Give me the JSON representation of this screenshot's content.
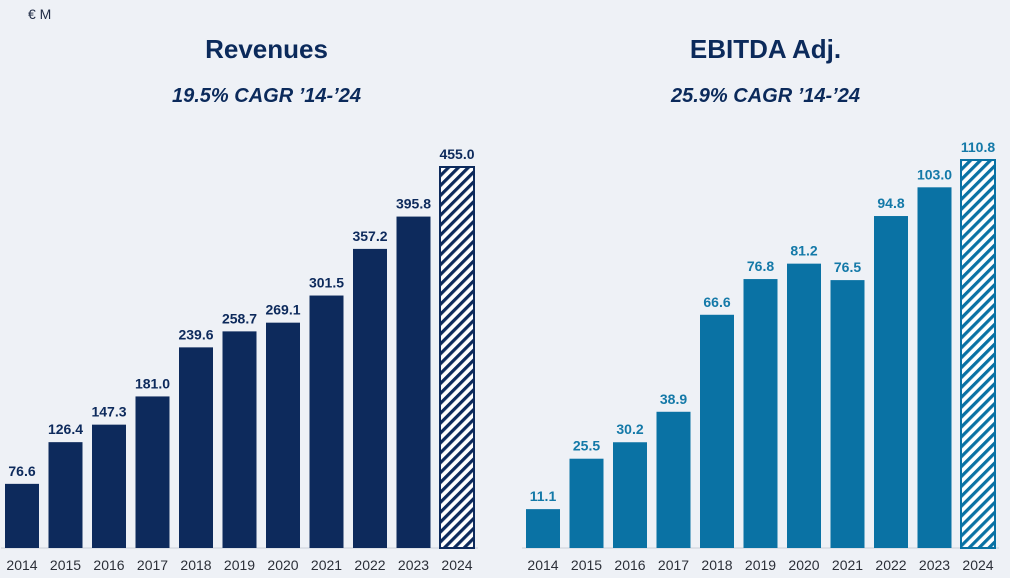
{
  "unit_label": "€ M",
  "chart_data": [
    {
      "type": "bar",
      "title": "Revenues",
      "subtitle": "19.5% CAGR ’14-’24",
      "categories": [
        "2014",
        "2015",
        "2016",
        "2017",
        "2018",
        "2019",
        "2020",
        "2021",
        "2022",
        "2023",
        "2024"
      ],
      "values": [
        76.6,
        126.4,
        147.3,
        181.0,
        239.6,
        258.7,
        269.1,
        301.5,
        357.2,
        395.8,
        455.0
      ],
      "value_labels": [
        "76.6",
        "126.4",
        "147.3",
        "181.0",
        "239.6",
        "258.7",
        "269.1",
        "301.5",
        "357.2",
        "395.8",
        "455.0"
      ],
      "highlight_last_hatched": true,
      "color": "#0d2a5c",
      "label_color": "#0d2a5c",
      "ylim": [
        0,
        455.0
      ],
      "grid": false
    },
    {
      "type": "bar",
      "title": "EBITDA Adj.",
      "subtitle": "25.9% CAGR ’14-’24",
      "categories": [
        "2014",
        "2015",
        "2016",
        "2017",
        "2018",
        "2019",
        "2020",
        "2021",
        "2022",
        "2023",
        "2024"
      ],
      "values": [
        11.1,
        25.5,
        30.2,
        38.9,
        66.6,
        76.8,
        81.2,
        76.5,
        94.8,
        103.0,
        110.8
      ],
      "value_labels": [
        "11.1",
        "25.5",
        "30.2",
        "38.9",
        "66.6",
        "76.8",
        "81.2",
        "76.5",
        "94.8",
        "103.0",
        "110.8"
      ],
      "highlight_last_hatched": true,
      "color": "#0a72a4",
      "label_color": "#1479a8",
      "ylim": [
        0,
        110.8
      ],
      "grid": false
    }
  ]
}
